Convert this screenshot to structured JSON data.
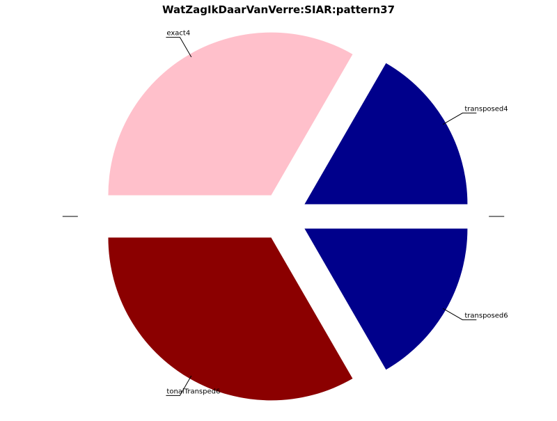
{
  "chart_data": {
    "type": "pie",
    "title": "WatZagIkDaarVanVerre:SIAR:pattern37",
    "slices": [
      {
        "label": "",
        "value": 0,
        "color": "#ffffff"
      },
      {
        "label": "transposed4",
        "value": 1,
        "color": "#00008b"
      },
      {
        "label": "exact4",
        "value": 2,
        "color": "#ffc0cb"
      },
      {
        "label": "",
        "value": 0,
        "color": "#ffffff"
      },
      {
        "label": "tonalTransped6",
        "value": 2,
        "color": "#8b0000"
      },
      {
        "label": "transposed6",
        "value": 1,
        "color": "#00008b"
      }
    ],
    "start_angle_deg": 0,
    "direction": "counterclockwise",
    "exploded": true,
    "legend": "none"
  }
}
